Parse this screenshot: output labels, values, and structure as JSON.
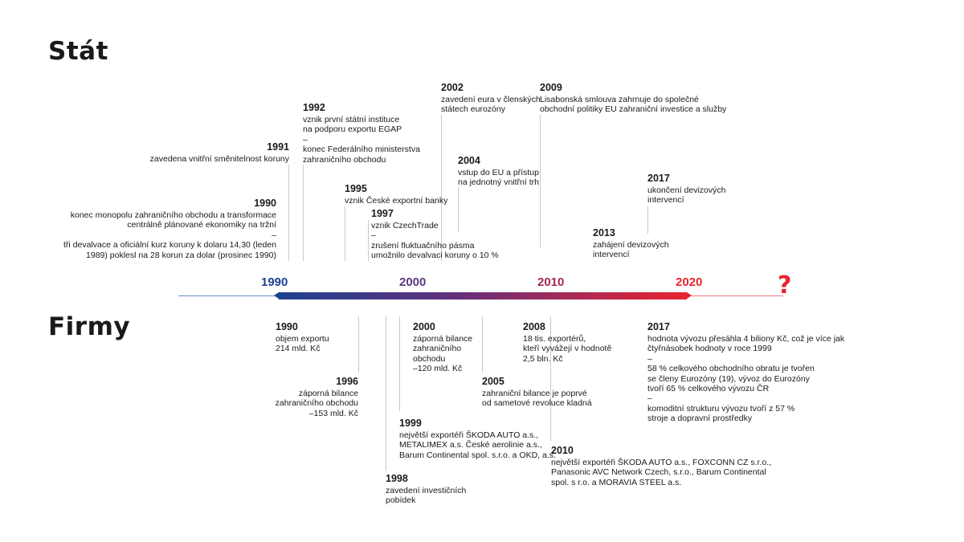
{
  "titles": {
    "stat": "Stát",
    "firmy": "Firmy"
  },
  "axis": {
    "decades": [
      "1990",
      "2000",
      "2010",
      "2020"
    ],
    "decade_colors": [
      "#1d4191",
      "#5b3a7e",
      "#a3294f",
      "#e6242f"
    ],
    "future": "?"
  },
  "stat_events": [
    {
      "year": "1990",
      "lines": [
        "konec monopolu zahraničního obchodu a transformace",
        "centrálně plánované ekonomiky na tržní",
        "–",
        "tři devalvace a oficiální kurz koruny k dolaru 14,30 (leden",
        "1989) poklesl na 28 korun za dolar (prosinec 1990)"
      ]
    },
    {
      "year": "1991",
      "lines": [
        "zavedena vnitřní směnitelnost koruny"
      ]
    },
    {
      "year": "1992",
      "lines": [
        "vznik první státní instituce",
        "na podporu exportu EGAP",
        "–",
        "konec Federálního ministerstva",
        "zahraničního obchodu"
      ]
    },
    {
      "year": "1995",
      "lines": [
        "vznik České exportní banky"
      ]
    },
    {
      "year": "1997",
      "lines": [
        "vznik CzechTrade",
        "–",
        "zrušení fluktuačního pásma",
        "umožnilo devalvaci koruny o 10 %"
      ]
    },
    {
      "year": "2002",
      "lines": [
        "zavedení eura v členských",
        "státech eurozóny"
      ]
    },
    {
      "year": "2004",
      "lines": [
        "vstup do EU a přístup",
        "na jednotný vnitřní trh"
      ]
    },
    {
      "year": "2009",
      "lines": [
        "Lisabonská smlouva zahrnuje do společné",
        "obchodní politiky EU zahraniční investice a služby"
      ]
    },
    {
      "year": "2013",
      "lines": [
        "zahájení devizových",
        "intervencí"
      ]
    },
    {
      "year": "2017",
      "lines": [
        "ukončení devizových",
        "intervencí"
      ]
    }
  ],
  "firmy_events": [
    {
      "year": "1990",
      "lines": [
        "objem exportu",
        "214 mld. Kč"
      ]
    },
    {
      "year": "1996",
      "lines": [
        "záporná bilance",
        "zahraničního obchodu",
        "–153 mld. Kč"
      ]
    },
    {
      "year": "1998",
      "lines": [
        "zavedení investičních",
        "pobídek"
      ]
    },
    {
      "year": "1999",
      "lines": [
        "největší exportéři ŠKODA AUTO a.s.,",
        "METALIMEX a.s.  České aerolinie a.s.,",
        "Barum Continental spol. s.r.o. a OKD, a.s."
      ]
    },
    {
      "year": "2000",
      "lines": [
        "záporná bilance",
        "zahraničního",
        "obchodu",
        "–120 mld. Kč"
      ]
    },
    {
      "year": "2005",
      "lines": [
        "zahraniční bilance je poprvé",
        "od sametové revoluce kladná"
      ]
    },
    {
      "year": "2008",
      "lines": [
        "18 tis. exportérů,",
        "kteří vyvážejí v hodnotě",
        "2,5 bln. Kč"
      ]
    },
    {
      "year": "2010",
      "lines": [
        "největší exportéři ŠKODA AUTO a.s., FOXCONN CZ s.r.o.,",
        "Panasonic AVC Network Czech, s.r.o., Barum Continental",
        "spol. s r.o. a MORAVIA STEEL a.s."
      ]
    },
    {
      "year": "2017",
      "lines": [
        "hodnota vývozu přesáhla 4 biliony Kč, což je více jak",
        "čtyřnásobek hodnoty v roce 1999",
        "–",
        "58 % celkového obchodního obratu je tvořen",
        "se členy Eurozóny (19), vývoz do Eurozóny",
        "tvoří 65 % celkového vývozu ČR",
        "–",
        "komoditní strukturu vývozu tvoří z 57 %",
        "stroje a dopravní prostředky"
      ]
    }
  ]
}
